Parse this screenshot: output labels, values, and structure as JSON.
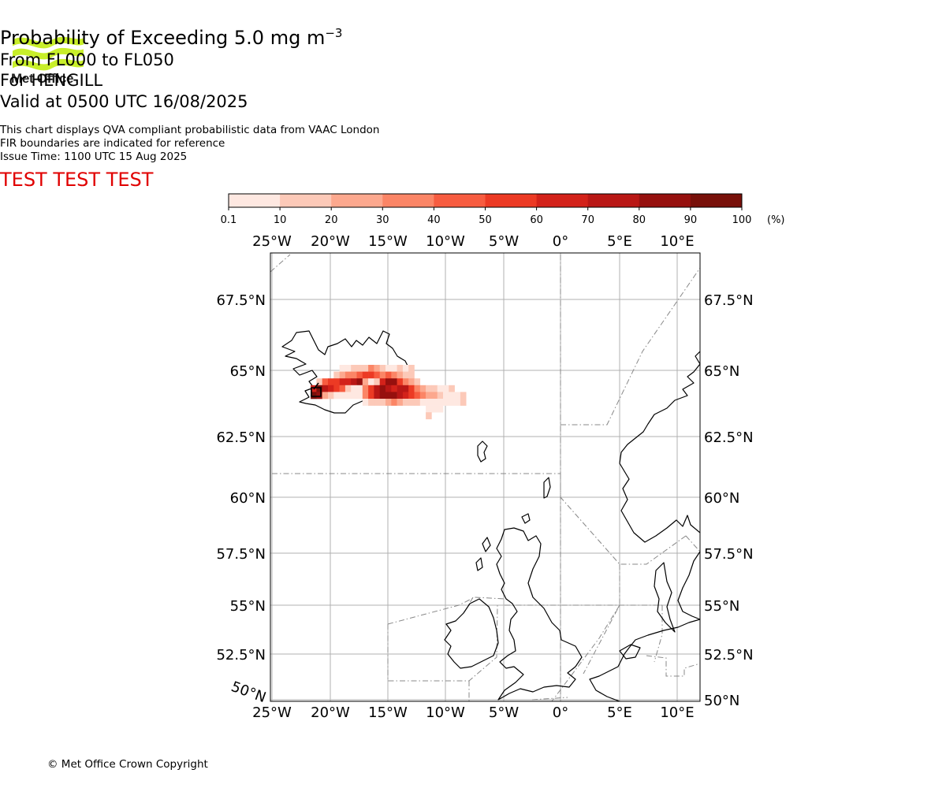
{
  "header": {
    "title_main": "Probability of Exceeding 5.0 mg m",
    "title_sup": "−3",
    "level_range": "From FL000 to FL050",
    "location": "For HENGILL",
    "valid": "Valid at 0500 UTC 16/08/2025",
    "info_line1": "This chart displays QVA compliant probabilistic data from VAAC London",
    "info_line2": "FIR boundaries are indicated for reference",
    "info_line3": "Issue Time: 1100 UTC 15 Aug 2025",
    "test_banner": "TEST TEST TEST"
  },
  "logo": {
    "text": "Met Office",
    "color": "#c8ef2a",
    "icon": "met-office-waves-logo"
  },
  "colorbar": {
    "ticks": [
      "0.1",
      "10",
      "20",
      "30",
      "40",
      "50",
      "60",
      "70",
      "80",
      "90",
      "100"
    ],
    "unit": "(%)",
    "colors": [
      "#fee8e1",
      "#fcc9b8",
      "#fca88e",
      "#fb8566",
      "#f75c40",
      "#ec3a24",
      "#d3221a",
      "#b91715",
      "#96100e",
      "#78100a"
    ]
  },
  "map": {
    "lon_labels": [
      "25°W",
      "20°W",
      "15°W",
      "10°W",
      "5°W",
      "0°",
      "5°E",
      "10°E"
    ],
    "lat_labels_left": [
      "67.5°N",
      "65°N",
      "62.5°N",
      "60°N",
      "57.5°N",
      "55°N",
      "52.5°N"
    ],
    "lat_labels_right": [
      "67.5°N",
      "65°N",
      "62.5°N",
      "60°N",
      "57.5°N",
      "55°N",
      "52.5°N",
      "50°N"
    ],
    "corner_label": "50°N",
    "source_marker": "Hengill volcano"
  },
  "footer": {
    "copyright": "© Met Office Crown Copyright"
  }
}
